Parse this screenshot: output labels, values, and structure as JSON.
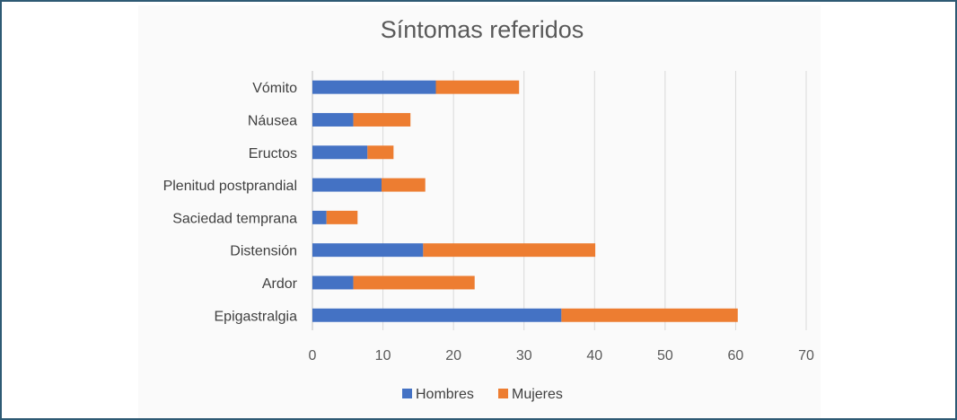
{
  "chart_data": {
    "type": "bar",
    "orientation": "horizontal",
    "stacked": true,
    "title": "Síntomas referidos",
    "categories": [
      "Vómito",
      "Náusea",
      "Eructos",
      "Plenitud postprandial",
      "Saciedad temprana",
      "Distensión",
      "Ardor",
      "Epigastralgia"
    ],
    "series": [
      {
        "name": "Hombres",
        "color": "#4472c4",
        "values": [
          17.5,
          5.8,
          7.8,
          9.8,
          2.0,
          15.7,
          5.8,
          35.3
        ]
      },
      {
        "name": "Mujeres",
        "color": "#ed7d31",
        "values": [
          11.8,
          8.1,
          3.7,
          6.2,
          4.4,
          24.4,
          17.2,
          25.0
        ]
      }
    ],
    "xlim": [
      0,
      70
    ],
    "xticks": [
      "0",
      "10",
      "20",
      "30",
      "40",
      "50",
      "60",
      "70"
    ],
    "grid": true,
    "legend_position": "bottom"
  }
}
